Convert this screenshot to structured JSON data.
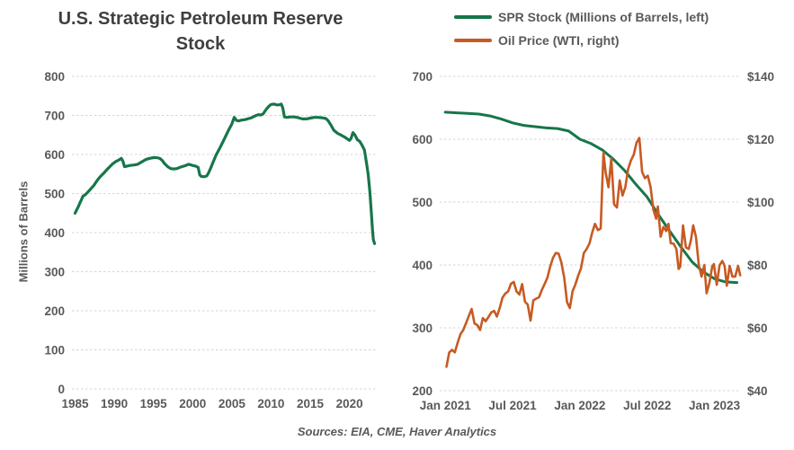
{
  "legend": [
    {
      "label": "SPR Stock (Millions of Barrels, left)",
      "color": "#17764A"
    },
    {
      "label": "Oil Price (WTI, right)",
      "color": "#C75A23"
    }
  ],
  "footer": {
    "sources": "Sources: EIA, CME, Haver Analytics"
  },
  "style": {
    "grid_color": "#D4D4D4",
    "tick_color": "#595959",
    "title_color": "#3F3F3F"
  },
  "chart_data": [
    {
      "id": "spr-history",
      "type": "line",
      "title": "U.S. Strategic Petroleum Reserve Stock",
      "ylabel": "Millions of Barrels",
      "xlabel": "",
      "grid": "horizontal",
      "legend_position": "none",
      "xlim": [
        1984.6,
        2023.6
      ],
      "x_ticks": {
        "pos": [
          1985,
          1990,
          1995,
          2000,
          2005,
          2010,
          2015,
          2020
        ],
        "labels": [
          "1985",
          "1990",
          "1995",
          "2000",
          "2005",
          "2010",
          "2015",
          "2020"
        ]
      },
      "left_axis": {
        "lim": [
          0,
          800
        ],
        "ticks": [
          800,
          700,
          600,
          500,
          400,
          300,
          200,
          100,
          0
        ]
      },
      "series": [
        {
          "name": "SPR Stock",
          "axis": "left",
          "color": "#17764A",
          "points": [
            [
              1985,
              450
            ],
            [
              1985.2,
              458
            ],
            [
              1985.4,
              466
            ],
            [
              1985.6,
              475
            ],
            [
              1985.8,
              484
            ],
            [
              1986,
              493
            ],
            [
              1986.3,
              497
            ],
            [
              1986.6,
              503
            ],
            [
              1987,
              512
            ],
            [
              1987.4,
              521
            ],
            [
              1987.8,
              533
            ],
            [
              1988.2,
              543
            ],
            [
              1988.6,
              551
            ],
            [
              1989,
              560
            ],
            [
              1989.4,
              568
            ],
            [
              1989.8,
              576
            ],
            [
              1990.2,
              582
            ],
            [
              1990.6,
              586
            ],
            [
              1990.9,
              590
            ],
            [
              1991.1,
              583
            ],
            [
              1991.3,
              569
            ],
            [
              1991.6,
              570
            ],
            [
              1992,
              572
            ],
            [
              1992.5,
              573
            ],
            [
              1993,
              575
            ],
            [
              1993.5,
              581
            ],
            [
              1994,
              587
            ],
            [
              1994.5,
              590
            ],
            [
              1995,
              592
            ],
            [
              1995.4,
              592
            ],
            [
              1995.8,
              590
            ],
            [
              1996.1,
              585
            ],
            [
              1996.4,
              577
            ],
            [
              1996.8,
              569
            ],
            [
              1997.2,
              564
            ],
            [
              1997.6,
              563
            ],
            [
              1998,
              564
            ],
            [
              1998.5,
              568
            ],
            [
              1999,
              571
            ],
            [
              1999.5,
              575
            ],
            [
              2000,
              572
            ],
            [
              2000.4,
              570
            ],
            [
              2000.7,
              567
            ],
            [
              2000.9,
              548
            ],
            [
              2001.1,
              544
            ],
            [
              2001.5,
              543
            ],
            [
              2001.8,
              545
            ],
            [
              2002,
              552
            ],
            [
              2002.3,
              565
            ],
            [
              2002.6,
              580
            ],
            [
              2003,
              599
            ],
            [
              2003.5,
              618
            ],
            [
              2004,
              638
            ],
            [
              2004.5,
              659
            ],
            [
              2005,
              678
            ],
            [
              2005.3,
              695
            ],
            [
              2005.6,
              687
            ],
            [
              2005.9,
              686
            ],
            [
              2006.2,
              688
            ],
            [
              2006.6,
              689
            ],
            [
              2007,
              691
            ],
            [
              2007.5,
              694
            ],
            [
              2008,
              699
            ],
            [
              2008.4,
              702
            ],
            [
              2008.7,
              701
            ],
            [
              2009,
              704
            ],
            [
              2009.3,
              713
            ],
            [
              2009.7,
              723
            ],
            [
              2010,
              728
            ],
            [
              2010.4,
              729
            ],
            [
              2010.7,
              727
            ],
            [
              2011,
              727
            ],
            [
              2011.3,
              729
            ],
            [
              2011.5,
              719
            ],
            [
              2011.7,
              696
            ],
            [
              2012,
              695
            ],
            [
              2012.5,
              696
            ],
            [
              2013,
              696
            ],
            [
              2013.5,
              694
            ],
            [
              2014,
              691
            ],
            [
              2014.5,
              691
            ],
            [
              2015,
              693
            ],
            [
              2015.5,
              695
            ],
            [
              2016,
              695
            ],
            [
              2016.5,
              694
            ],
            [
              2017,
              692
            ],
            [
              2017.3,
              686
            ],
            [
              2017.7,
              673
            ],
            [
              2018,
              662
            ],
            [
              2018.5,
              654
            ],
            [
              2019,
              649
            ],
            [
              2019.5,
              643
            ],
            [
              2020,
              636
            ],
            [
              2020.2,
              641
            ],
            [
              2020.45,
              656
            ],
            [
              2020.7,
              650
            ],
            [
              2020.9,
              642
            ],
            [
              2021,
              638
            ],
            [
              2021.3,
              634
            ],
            [
              2021.6,
              624
            ],
            [
              2021.9,
              612
            ],
            [
              2022,
              600
            ],
            [
              2022.2,
              575
            ],
            [
              2022.4,
              548
            ],
            [
              2022.6,
              505
            ],
            [
              2022.8,
              450
            ],
            [
              2022.95,
              405
            ],
            [
              2023.05,
              382
            ],
            [
              2023.2,
              372
            ]
          ]
        }
      ]
    },
    {
      "id": "spr-vs-wti",
      "type": "line",
      "title": "",
      "x_unit": "months since Jan 2021",
      "grid": "horizontal",
      "legend_position": "top",
      "xlim": [
        -0.5,
        26.2
      ],
      "x_ticks": {
        "pos": [
          0,
          6,
          12,
          18,
          24
        ],
        "labels": [
          "Jan 2021",
          "Jul 2021",
          "Jan 2022",
          "Jul 2022",
          "Jan 2023"
        ]
      },
      "left_axis": {
        "lim": [
          200,
          700
        ],
        "ticks": [
          700,
          600,
          500,
          400,
          300,
          200
        ]
      },
      "right_axis": {
        "lim": [
          40,
          140
        ],
        "tick_labels": [
          "$140",
          "$120",
          "$100",
          "$80",
          "$60",
          "$40"
        ]
      },
      "series": [
        {
          "name": "SPR Stock (Millions of Barrels, left)",
          "axis": "left",
          "color": "#17764A",
          "points": [
            [
              0,
              643
            ],
            [
              1,
              642
            ],
            [
              2,
              641
            ],
            [
              3,
              640
            ],
            [
              4,
              637
            ],
            [
              5,
              632
            ],
            [
              6,
              626
            ],
            [
              7,
              622
            ],
            [
              8,
              620
            ],
            [
              9,
              618
            ],
            [
              10,
              617
            ],
            [
              11,
              613
            ],
            [
              12,
              600
            ],
            [
              13,
              593
            ],
            [
              14,
              583
            ],
            [
              15,
              568
            ],
            [
              16,
              550
            ],
            [
              17,
              528
            ],
            [
              18,
              508
            ],
            [
              19,
              480
            ],
            [
              20,
              454
            ],
            [
              21,
              429
            ],
            [
              22,
              405
            ],
            [
              23,
              389
            ],
            [
              24,
              378
            ],
            [
              25,
              373
            ],
            [
              26,
              372
            ]
          ]
        },
        {
          "name": "Oil Price (WTI, right)",
          "axis": "right",
          "color": "#C75A23",
          "points": [
            [
              0.1,
              47.6
            ],
            [
              0.35,
              52.2
            ],
            [
              0.6,
              53.0
            ],
            [
              0.85,
              52.2
            ],
            [
              1.1,
              55.3
            ],
            [
              1.35,
              58.0
            ],
            [
              1.6,
              59.3
            ],
            [
              1.85,
              61.5
            ],
            [
              2.1,
              63.8
            ],
            [
              2.35,
              66.0
            ],
            [
              2.6,
              61.4
            ],
            [
              2.85,
              60.9
            ],
            [
              3.1,
              59.3
            ],
            [
              3.35,
              63.1
            ],
            [
              3.6,
              62.1
            ],
            [
              3.85,
              63.5
            ],
            [
              4.1,
              64.9
            ],
            [
              4.35,
              65.4
            ],
            [
              4.6,
              63.6
            ],
            [
              4.85,
              66.3
            ],
            [
              5.1,
              69.6
            ],
            [
              5.35,
              70.9
            ],
            [
              5.6,
              71.6
            ],
            [
              5.85,
              74.0
            ],
            [
              6.1,
              74.6
            ],
            [
              6.35,
              71.6
            ],
            [
              6.6,
              70.6
            ],
            [
              6.85,
              73.9
            ],
            [
              7.1,
              68.3
            ],
            [
              7.35,
              67.4
            ],
            [
              7.6,
              62.3
            ],
            [
              7.85,
              68.7
            ],
            [
              8.1,
              69.3
            ],
            [
              8.35,
              69.7
            ],
            [
              8.6,
              72.0
            ],
            [
              8.85,
              73.9
            ],
            [
              9.1,
              75.9
            ],
            [
              9.35,
              79.4
            ],
            [
              9.6,
              82.3
            ],
            [
              9.85,
              83.8
            ],
            [
              10.1,
              83.6
            ],
            [
              10.35,
              80.8
            ],
            [
              10.6,
              76.1
            ],
            [
              10.85,
              68.2
            ],
            [
              11.1,
              66.3
            ],
            [
              11.35,
              71.7
            ],
            [
              11.6,
              73.8
            ],
            [
              11.85,
              76.6
            ],
            [
              12.1,
              78.9
            ],
            [
              12.35,
              83.8
            ],
            [
              12.6,
              85.1
            ],
            [
              12.85,
              86.8
            ],
            [
              13.1,
              90.3
            ],
            [
              13.35,
              93.1
            ],
            [
              13.6,
              91.1
            ],
            [
              13.85,
              91.6
            ],
            [
              14.1,
              115.7
            ],
            [
              14.3,
              109.3
            ],
            [
              14.55,
              104.7
            ],
            [
              14.8,
              113.9
            ],
            [
              15.05,
              99.3
            ],
            [
              15.3,
              98.3
            ],
            [
              15.55,
              106.9
            ],
            [
              15.8,
              102.1
            ],
            [
              16.05,
              104.7
            ],
            [
              16.3,
              110.5
            ],
            [
              16.55,
              113.2
            ],
            [
              16.8,
              115.1
            ],
            [
              17.05,
              118.9
            ],
            [
              17.3,
              120.4
            ],
            [
              17.55,
              109.6
            ],
            [
              17.8,
              107.6
            ],
            [
              18.05,
              108.4
            ],
            [
              18.3,
              104.8
            ],
            [
              18.55,
              97.6
            ],
            [
              18.8,
              94.7
            ],
            [
              18.95,
              98.6
            ],
            [
              19.2,
              89.0
            ],
            [
              19.45,
              92.1
            ],
            [
              19.7,
              90.8
            ],
            [
              19.9,
              93.1
            ],
            [
              20.1,
              86.9
            ],
            [
              20.35,
              86.8
            ],
            [
              20.6,
              85.1
            ],
            [
              20.8,
              78.7
            ],
            [
              20.95,
              79.5
            ],
            [
              21.2,
              92.6
            ],
            [
              21.45,
              85.6
            ],
            [
              21.7,
              85.1
            ],
            [
              21.9,
              87.9
            ],
            [
              22.1,
              92.6
            ],
            [
              22.35,
              88.9
            ],
            [
              22.6,
              80.1
            ],
            [
              22.85,
              76.3
            ],
            [
              23.1,
              80.0
            ],
            [
              23.3,
              71.0
            ],
            [
              23.55,
              74.3
            ],
            [
              23.8,
              79.6
            ],
            [
              23.95,
              80.3
            ],
            [
              24.2,
              73.7
            ],
            [
              24.45,
              79.9
            ],
            [
              24.7,
              81.3
            ],
            [
              24.9,
              79.7
            ],
            [
              25.1,
              73.4
            ],
            [
              25.35,
              79.7
            ],
            [
              25.6,
              76.3
            ],
            [
              25.85,
              76.3
            ],
            [
              26.1,
              79.7
            ],
            [
              26.3,
              76.7
            ]
          ]
        }
      ]
    }
  ]
}
